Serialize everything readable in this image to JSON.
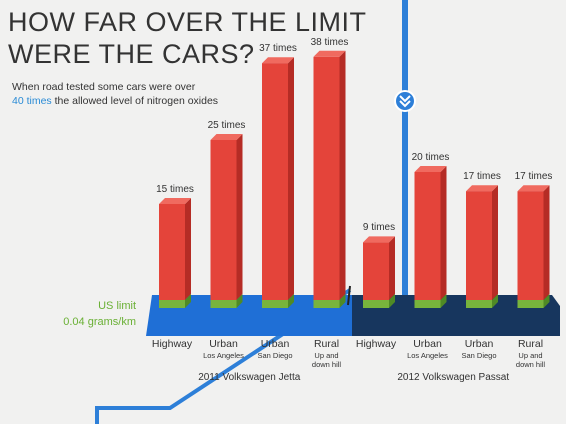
{
  "chart_data": {
    "type": "bar",
    "title": [
      "HOW FAR OVER THE LIMIT",
      "WERE THE CARS?"
    ],
    "subtitle": [
      "When road tested some cars were over",
      "40 times",
      "the allowed level of nitrogen oxides"
    ],
    "limit_label": "US limit",
    "limit_value_label": "0.04 grams/km",
    "color": "#e4443a",
    "groups": [
      {
        "name": "2011 Volkswagen Jetta",
        "categories": [
          "Highway",
          "Urban",
          "Urban",
          "Rural"
        ],
        "details": [
          null,
          "Los Angeles",
          "San Diego",
          "Up and down hill"
        ],
        "values": [
          15,
          25,
          37,
          38
        ],
        "value_labels": [
          "15 times",
          "25 times",
          "37 times",
          "38 times"
        ]
      },
      {
        "name": "2012 Volkswagen Passat",
        "categories": [
          "Highway",
          "Urban",
          "Urban",
          "Rural"
        ],
        "details": [
          null,
          "Los Angeles",
          "San Diego",
          "Up and down hill"
        ],
        "values": [
          9,
          20,
          17,
          17
        ],
        "value_labels": [
          "9 times",
          "20 times",
          "17 times",
          "17 times"
        ]
      }
    ]
  }
}
